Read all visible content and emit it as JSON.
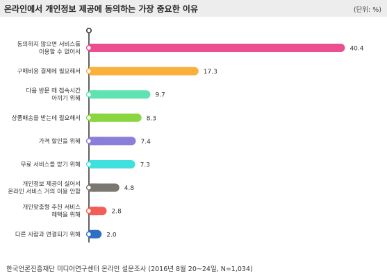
{
  "header": {
    "title": "온라인에서 개인정보 제공에 동의하는 가장 중요한 이유",
    "unit": "(단위: %)"
  },
  "footer": {
    "source": "한국언론진흥재단 미디어연구센터 온라인 설문조사 (2016년 8월 20~24일, N=1,034)"
  },
  "chart_data": {
    "type": "bar",
    "orientation": "horizontal",
    "title": "온라인에서 개인정보 제공에 동의하는 가장 중요한 이유",
    "unit": "(단위: %)",
    "categories": [
      [
        "동의하지 않으면 서비스를",
        "이용할 수 없어서"
      ],
      [
        "구매비용 결제에 필요해서"
      ],
      [
        "다음 방문 때 접속시간",
        "아끼기 위해"
      ],
      [
        "상품배송을 받는데 필요해서"
      ],
      [
        "가격 할인을 위해"
      ],
      [
        "무료 서비스를 받기 위해"
      ],
      [
        "개인정보 제공이 싫어서",
        "온라인 서비스 거의 이용 안함"
      ],
      [
        "개인맞춤형 추천 서비스",
        "혜택을 위해"
      ],
      [
        "다른 사람과 연결되기 위해"
      ]
    ],
    "values": [
      40.4,
      17.3,
      9.7,
      8.3,
      7.4,
      7.3,
      4.8,
      2.8,
      2.0
    ],
    "value_labels": [
      "40.4",
      "17.3",
      "9.7",
      "8.3",
      "7.4",
      "7.3",
      "4.8",
      "2.8",
      "2.0"
    ],
    "bar_colors": [
      "#ec4f8f",
      "#fbb03b",
      "#5fe3b0",
      "#8bd63e",
      "#8a7fd8",
      "#3fe0dd",
      "#7b7771",
      "#f25e55",
      "#2f6fc4"
    ],
    "axis_color": "#3a3a3a",
    "xlim": [
      0,
      42
    ],
    "grid": false,
    "legend": "none"
  }
}
